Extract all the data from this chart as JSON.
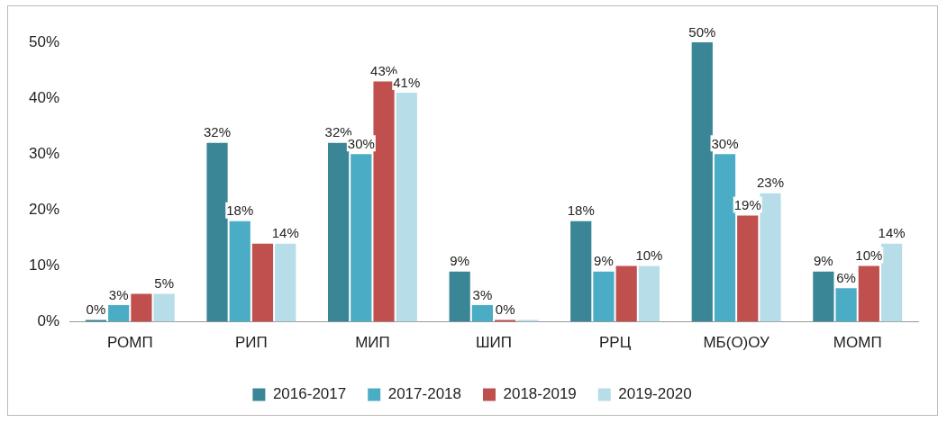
{
  "chart_data": {
    "type": "bar",
    "categories": [
      "РОМП",
      "РИП",
      "МИП",
      "ШИП",
      "РРЦ",
      "МБ(О)ОУ",
      "МОМП"
    ],
    "series": [
      {
        "name": "2016-2017",
        "color": "#3a8696",
        "values": [
          0,
          32,
          32,
          9,
          18,
          50,
          9
        ],
        "value_labels": [
          "0%",
          "32%",
          "32%",
          "9%",
          "18%",
          "50%",
          "9%"
        ]
      },
      {
        "name": "2017-2018",
        "color": "#4bacc6",
        "values": [
          3,
          18,
          30,
          3,
          9,
          30,
          6
        ],
        "value_labels": [
          "3%",
          "18%",
          "30%",
          "3%",
          "9%",
          "30%",
          "6%"
        ]
      },
      {
        "name": "2018-2019",
        "color": "#c0504d",
        "values": [
          5,
          14,
          43,
          0,
          10,
          19,
          10
        ],
        "value_labels": [
          null,
          null,
          "43%",
          "0%",
          null,
          "19%",
          "10%"
        ]
      },
      {
        "name": "2019-2020",
        "color": "#b7dde8",
        "values": [
          5,
          14,
          41,
          0,
          10,
          23,
          14
        ],
        "value_labels": [
          "5%",
          "14%",
          "41%",
          null,
          "10%",
          "23%",
          "14%"
        ]
      }
    ],
    "ylim": [
      0,
      50
    ],
    "yticks": [
      {
        "value": 0,
        "label": "0%"
      },
      {
        "value": 10,
        "label": "10%"
      },
      {
        "value": 20,
        "label": "20%"
      },
      {
        "value": 30,
        "label": "30%"
      },
      {
        "value": 40,
        "label": "40%"
      },
      {
        "value": 50,
        "label": "50%"
      }
    ],
    "grid": false,
    "legend": "bottom"
  }
}
